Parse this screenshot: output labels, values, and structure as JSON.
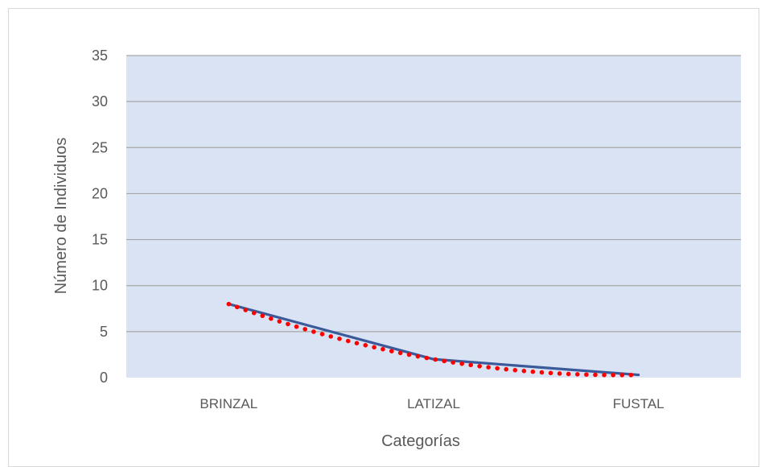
{
  "chart_data": {
    "type": "line",
    "title": "",
    "xlabel": "Categorías",
    "ylabel": "Número de Individuos",
    "categories": [
      "BRINZAL",
      "LATIZAL",
      "FUSTAL"
    ],
    "series": [
      {
        "values": [
          8,
          2,
          0.3
        ],
        "color": "#3a5a9a",
        "style": "solid"
      }
    ],
    "trendline": {
      "type": "polynomial",
      "values": [
        8,
        2,
        0.3
      ],
      "color": "#ff0000",
      "style": "dotted"
    },
    "ylim": [
      0,
      35
    ],
    "yticks": [
      0,
      5,
      10,
      15,
      20,
      25,
      30,
      35
    ],
    "grid": true,
    "plot_background": "#dae3f3",
    "gridline_color": "#a6a6a6"
  }
}
